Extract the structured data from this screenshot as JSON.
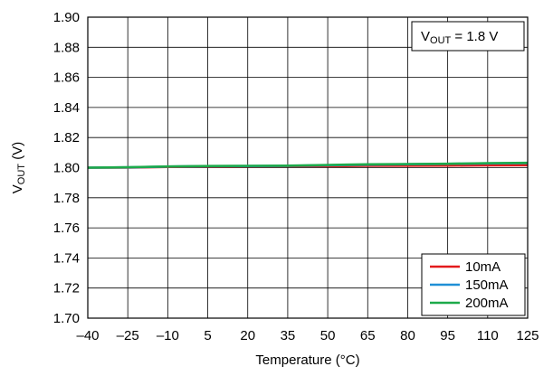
{
  "chart_data": {
    "type": "line",
    "title": "",
    "xlabel": "Temperature (°C)",
    "ylabel": {
      "main": "V",
      "sub": "OUT",
      "rest": " (V)"
    },
    "annotation": {
      "main": "V",
      "sub": "OUT",
      "rest": " = 1.8 V"
    },
    "xlim": [
      -40,
      125
    ],
    "ylim": [
      1.7,
      1.9
    ],
    "xticks": [
      -40,
      -25,
      -10,
      5,
      20,
      35,
      50,
      65,
      80,
      95,
      110,
      125
    ],
    "xtick_labels": [
      "–40",
      "–25",
      "–10",
      "5",
      "20",
      "35",
      "50",
      "65",
      "80",
      "95",
      "110",
      "125"
    ],
    "yticks": [
      1.7,
      1.72,
      1.74,
      1.76,
      1.78,
      1.8,
      1.82,
      1.84,
      1.86,
      1.88,
      1.9
    ],
    "ytick_labels": [
      "1.70",
      "1.72",
      "1.74",
      "1.76",
      "1.78",
      "1.80",
      "1.82",
      "1.84",
      "1.86",
      "1.88",
      "1.90"
    ],
    "grid": true,
    "legend_position": "bottom-right",
    "series": [
      {
        "name": "10mA",
        "color": "#e31a1c",
        "x": [
          -40,
          -25,
          -10,
          5,
          20,
          35,
          50,
          65,
          80,
          95,
          110,
          125
        ],
        "y": [
          1.8,
          1.8,
          1.8005,
          1.8008,
          1.8009,
          1.801,
          1.801,
          1.8012,
          1.8013,
          1.8014,
          1.8015,
          1.8016
        ]
      },
      {
        "name": "150mA",
        "color": "#1f8fd6",
        "x": [
          -40,
          -25,
          -10,
          5,
          20,
          35,
          50,
          65,
          80,
          95,
          110,
          125
        ],
        "y": [
          1.8,
          1.8002,
          1.8007,
          1.801,
          1.8011,
          1.8012,
          1.8016,
          1.802,
          1.8023,
          1.8025,
          1.8028,
          1.803
        ]
      },
      {
        "name": "200mA",
        "color": "#1daa4a",
        "x": [
          -40,
          -25,
          -10,
          5,
          20,
          35,
          50,
          65,
          80,
          95,
          110,
          125
        ],
        "y": [
          1.8,
          1.8003,
          1.8008,
          1.8011,
          1.8012,
          1.8013,
          1.8018,
          1.8022,
          1.8024,
          1.8026,
          1.803,
          1.8032
        ]
      }
    ]
  }
}
